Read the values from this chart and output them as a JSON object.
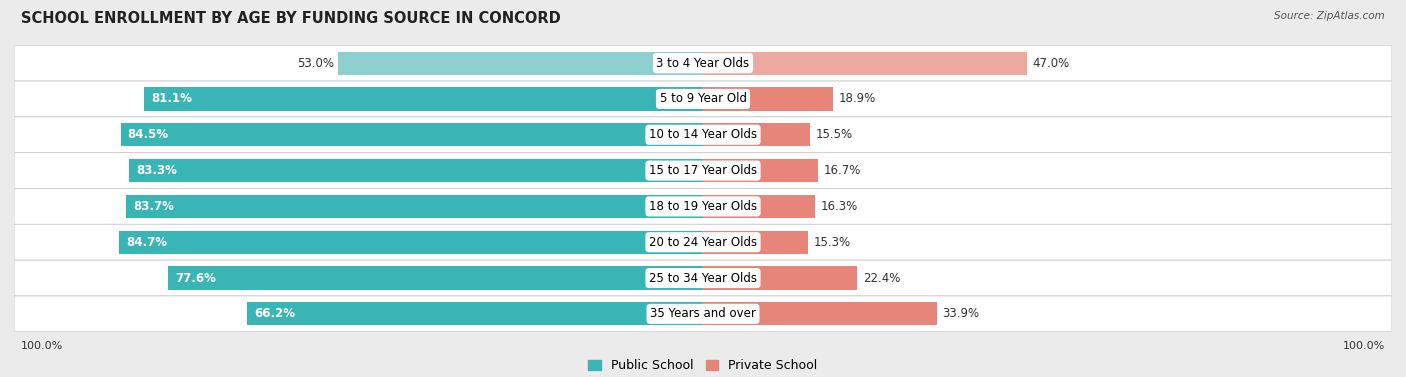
{
  "title": "SCHOOL ENROLLMENT BY AGE BY FUNDING SOURCE IN CONCORD",
  "source": "Source: ZipAtlas.com",
  "categories": [
    "3 to 4 Year Olds",
    "5 to 9 Year Old",
    "10 to 14 Year Olds",
    "15 to 17 Year Olds",
    "18 to 19 Year Olds",
    "20 to 24 Year Olds",
    "25 to 34 Year Olds",
    "35 Years and over"
  ],
  "public_values": [
    53.0,
    81.1,
    84.5,
    83.3,
    83.7,
    84.7,
    77.6,
    66.2
  ],
  "private_values": [
    47.0,
    18.9,
    15.5,
    16.7,
    16.3,
    15.3,
    22.4,
    33.9
  ],
  "public_color": "#3ab5b5",
  "private_color": "#e8857a",
  "public_color_row0": "#8ed0d0",
  "private_color_row0": "#eda89f",
  "public_color_light": "#a8d5d5",
  "private_color_light": "#f2b8b0",
  "bg_color": "#ebebeb",
  "row_bg_even": "#f5f5f5",
  "row_bg_odd": "#eaeaea",
  "label_fontsize": 8.5,
  "title_fontsize": 10.5,
  "legend_fontsize": 9,
  "axis_label_fontsize": 8
}
